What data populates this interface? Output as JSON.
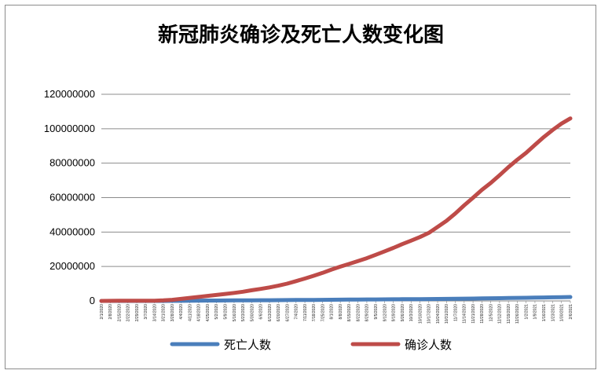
{
  "chart_data": {
    "type": "line",
    "title": "新冠肺炎确诊及死亡人数变化图",
    "xlabel": "",
    "ylabel": "",
    "ylim": [
      0,
      120000000
    ],
    "yticks": [
      0,
      20000000,
      40000000,
      60000000,
      80000000,
      100000000,
      120000000
    ],
    "ytick_labels": [
      "0",
      "20000000",
      "40000000",
      "60000000",
      "80000000",
      "100000000",
      "120000000"
    ],
    "grid": true,
    "legend_position": "bottom",
    "categories": [
      "2/1/2020",
      "2/8/2020",
      "2/15/2020",
      "2/22/2020",
      "2/29/2020",
      "3/7/2020",
      "3/14/2020",
      "3/21/2020",
      "3/28/2020",
      "4/4/2020",
      "4/11/2020",
      "4/18/2020",
      "4/25/2020",
      "5/2/2020",
      "5/9/2020",
      "5/16/2020",
      "5/23/2020",
      "5/30/2020",
      "6/6/2020",
      "6/13/2020",
      "6/20/2020",
      "6/27/2020",
      "7/4/2020",
      "7/11/2020",
      "7/18/2020",
      "7/25/2020",
      "8/1/2020",
      "8/8/2020",
      "8/15/2020",
      "8/22/2020",
      "8/29/2020",
      "9/5/2020",
      "9/12/2020",
      "9/19/2020",
      "9/26/2020",
      "10/3/2020",
      "10/10/2020",
      "10/17/2020",
      "10/24/2020",
      "10/31/2020",
      "11/7/2020",
      "11/14/2020",
      "11/21/2020",
      "11/28/2020",
      "12/5/2020",
      "12/12/2020",
      "12/19/2020",
      "12/26/2020",
      "1/2/2021",
      "1/9/2021",
      "1/16/2021",
      "1/23/2021",
      "1/30/2021",
      "2/6/2021"
    ],
    "series": [
      {
        "name": "死亡人数",
        "color": "#4a7ebb",
        "values": [
          0,
          0,
          2000,
          2500,
          3000,
          4000,
          6000,
          13000,
          31000,
          64000,
          108000,
          160000,
          206000,
          248000,
          282000,
          312000,
          341000,
          370000,
          398000,
          426000,
          460000,
          495000,
          532000,
          572000,
          612000,
          652000,
          692000,
          732000,
          772000,
          810000,
          845000,
          880000,
          915000,
          950000,
          990000,
          1030000,
          1065000,
          1105000,
          1150000,
          1200000,
          1255000,
          1320000,
          1380000,
          1450000,
          1530000,
          1610000,
          1680000,
          1770000,
          1840000,
          1930000,
          2020000,
          2110000,
          2200000,
          2280000
        ]
      },
      {
        "name": "确诊人数",
        "color": "#be4b48",
        "values": [
          12000,
          37000,
          69000,
          78000,
          86000,
          106000,
          156000,
          305000,
          660000,
          1200000,
          1780000,
          2330000,
          2900000,
          3450000,
          4050000,
          4640000,
          5340000,
          6200000,
          7000000,
          7850000,
          8850000,
          10050000,
          11500000,
          13000000,
          14600000,
          16300000,
          18200000,
          19900000,
          21500000,
          23200000,
          24800000,
          26800000,
          28800000,
          30800000,
          33000000,
          35000000,
          37100000,
          39500000,
          43000000,
          46500000,
          50800000,
          55500000,
          59900000,
          64500000,
          68500000,
          73000000,
          77700000,
          82000000,
          86000000,
          90600000,
          95200000,
          99300000,
          103000000,
          106000000
        ]
      }
    ]
  }
}
